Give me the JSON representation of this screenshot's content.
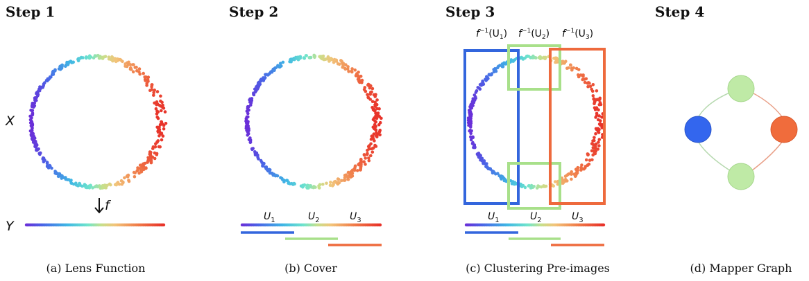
{
  "panels": [
    {
      "step_title": "Step 1",
      "caption": "(a) Lens Function"
    },
    {
      "step_title": "Step 2",
      "caption": "(b) Cover"
    },
    {
      "step_title": "Step 3",
      "caption": "(c) Clustering Pre-images"
    },
    {
      "step_title": "Step 4",
      "caption": "(d) Mapper Graph"
    }
  ],
  "labels": {
    "space_x": "X",
    "space_y": "Y",
    "lens_f": "f",
    "cover_sets": [
      "U",
      "U",
      "U"
    ],
    "cover_subscripts": [
      "1",
      "2",
      "3"
    ],
    "preimages": [
      "f",
      "f",
      "f"
    ],
    "preimage_superscript": "−1",
    "preimage_args": [
      "(U",
      "(U",
      "(U"
    ],
    "preimage_close": ")"
  },
  "colors": {
    "cover_u1": "#3366dd",
    "cover_u2": "#a8e08a",
    "cover_u3": "#ee6a3d",
    "node_left": "#3366ee",
    "node_right": "#f06c3c",
    "node_mid": "#bfeaa6"
  }
}
